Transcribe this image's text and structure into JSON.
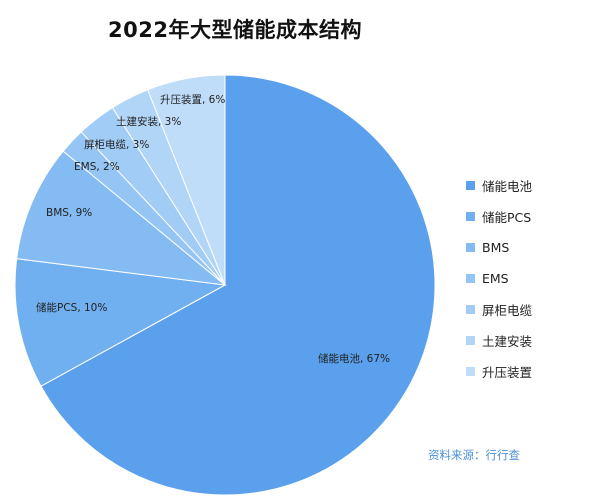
{
  "chart_data": {
    "type": "pie",
    "title": "2022年大型储能成本结构",
    "slices": [
      {
        "name": "储能电池",
        "value": 67,
        "label": "储能电池, 67%",
        "color": "#5aa0ec"
      },
      {
        "name": "储能PCS",
        "value": 10,
        "label": "储能PCS, 10%",
        "color": "#71b0f0"
      },
      {
        "name": "BMS",
        "value": 9,
        "label": "BMS, 9%",
        "color": "#83bbf2"
      },
      {
        "name": "EMS",
        "value": 2,
        "label": "EMS, 2%",
        "color": "#94c5f4"
      },
      {
        "name": "屏柜电缆",
        "value": 3,
        "label": "屏柜电缆, 3%",
        "color": "#a1ccf5"
      },
      {
        "name": "土建安装",
        "value": 3,
        "label": "土建安装, 3%",
        "color": "#b1d5f7"
      },
      {
        "name": "升压装置",
        "value": 6,
        "label": "升压装置, 6%",
        "color": "#bfdcf9"
      }
    ],
    "legend_position": "right"
  },
  "source_note": "资料来源：行行查"
}
